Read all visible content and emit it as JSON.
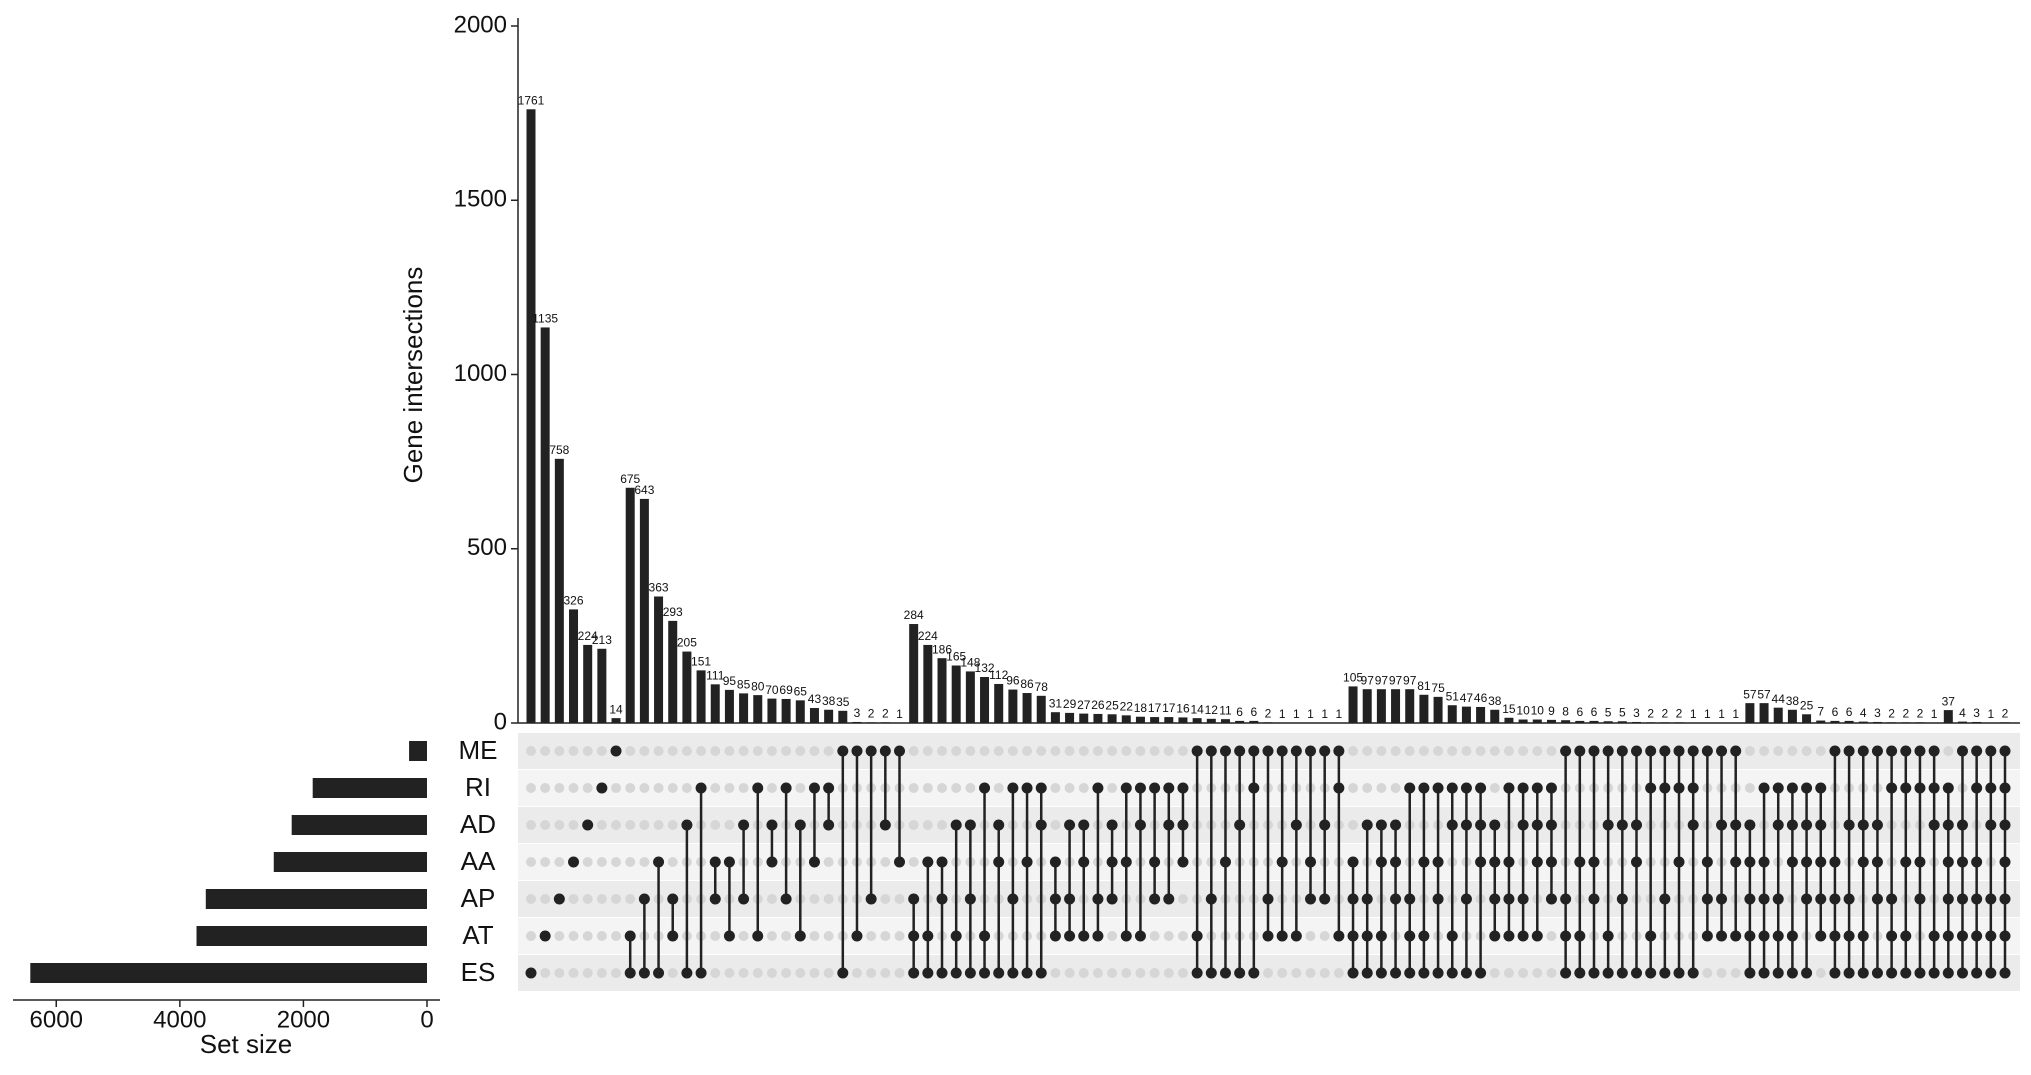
{
  "chart_data": {
    "type": "upset",
    "y_label": "Gene intersections",
    "x_label": "Set size",
    "sets": [
      "ME",
      "RI",
      "AD",
      "AA",
      "AP",
      "AT",
      "ES"
    ],
    "set_sizes": [
      290,
      1850,
      2190,
      2480,
      3580,
      3730,
      6420
    ],
    "set_size_xlim": [
      0,
      6700
    ],
    "set_size_xticks": [
      0,
      2000,
      4000,
      6000
    ],
    "ylim": [
      0,
      2000
    ],
    "yticks": [
      0,
      500,
      1000,
      1500,
      2000
    ],
    "color": "#222222",
    "values": [
      1761,
      1135,
      758,
      326,
      224,
      213,
      14,
      675,
      643,
      363,
      293,
      205,
      151,
      111,
      95,
      85,
      80,
      70,
      69,
      65,
      43,
      38,
      35,
      3,
      2,
      2,
      1,
      284,
      224,
      186,
      165,
      148,
      132,
      112,
      96,
      86,
      78,
      31,
      29,
      27,
      26,
      25,
      22,
      18,
      17,
      17,
      16,
      14,
      12,
      11,
      6,
      6,
      2,
      1,
      1,
      1,
      1,
      1,
      105,
      97,
      97,
      97,
      97,
      81,
      75,
      51,
      47,
      46,
      38,
      15,
      10,
      10,
      9,
      8,
      6,
      6,
      5,
      5,
      3,
      2,
      2,
      2,
      1,
      1,
      1,
      1,
      57,
      57,
      44,
      38,
      25,
      7,
      6,
      6,
      4,
      3,
      2,
      2,
      2,
      1,
      37,
      4,
      3,
      1,
      2
    ],
    "intersections": [
      [
        6
      ],
      [
        5
      ],
      [
        4
      ],
      [
        3
      ],
      [
        2
      ],
      [
        1
      ],
      [
        0
      ],
      [
        5,
        6
      ],
      [
        4,
        6
      ],
      [
        3,
        6
      ],
      [
        4,
        5
      ],
      [
        2,
        6
      ],
      [
        1,
        6
      ],
      [
        3,
        4
      ],
      [
        3,
        5
      ],
      [
        2,
        4
      ],
      [
        1,
        5
      ],
      [
        2,
        3
      ],
      [
        1,
        4
      ],
      [
        2,
        5
      ],
      [
        1,
        3
      ],
      [
        1,
        2
      ],
      [
        0,
        6
      ],
      [
        0,
        5
      ],
      [
        0,
        4
      ],
      [
        0,
        2
      ],
      [
        0,
        3
      ],
      [
        4,
        5,
        6
      ],
      [
        3,
        5,
        6
      ],
      [
        3,
        4,
        6
      ],
      [
        2,
        5,
        6
      ],
      [
        2,
        4,
        6
      ],
      [
        1,
        5,
        6
      ],
      [
        2,
        3,
        6
      ],
      [
        1,
        4,
        6
      ],
      [
        1,
        3,
        6
      ],
      [
        1,
        2,
        6
      ],
      [
        3,
        4,
        5
      ],
      [
        2,
        4,
        5
      ],
      [
        2,
        3,
        5
      ],
      [
        1,
        4,
        5
      ],
      [
        2,
        3,
        4
      ],
      [
        1,
        3,
        5
      ],
      [
        1,
        2,
        5
      ],
      [
        1,
        3,
        4
      ],
      [
        1,
        2,
        4
      ],
      [
        1,
        2,
        3
      ],
      [
        0,
        5,
        6
      ],
      [
        0,
        4,
        6
      ],
      [
        0,
        3,
        6
      ],
      [
        0,
        2,
        6
      ],
      [
        0,
        1,
        6
      ],
      [
        0,
        4,
        5
      ],
      [
        0,
        3,
        5
      ],
      [
        0,
        2,
        5
      ],
      [
        0,
        3,
        4
      ],
      [
        0,
        2,
        4
      ],
      [
        0,
        1,
        5
      ],
      [
        3,
        4,
        5,
        6
      ],
      [
        2,
        4,
        5,
        6
      ],
      [
        2,
        3,
        5,
        6
      ],
      [
        2,
        3,
        4,
        6
      ],
      [
        1,
        4,
        5,
        6
      ],
      [
        1,
        3,
        5,
        6
      ],
      [
        1,
        3,
        4,
        6
      ],
      [
        1,
        2,
        5,
        6
      ],
      [
        1,
        2,
        4,
        6
      ],
      [
        1,
        2,
        3,
        6
      ],
      [
        2,
        3,
        4,
        5
      ],
      [
        1,
        3,
        4,
        5
      ],
      [
        1,
        2,
        4,
        5
      ],
      [
        1,
        2,
        3,
        5
      ],
      [
        1,
        2,
        3,
        4
      ],
      [
        0,
        4,
        5,
        6
      ],
      [
        0,
        3,
        5,
        6
      ],
      [
        0,
        3,
        4,
        6
      ],
      [
        0,
        2,
        5,
        6
      ],
      [
        0,
        2,
        4,
        6
      ],
      [
        0,
        2,
        3,
        6
      ],
      [
        0,
        1,
        5,
        6
      ],
      [
        0,
        1,
        4,
        6
      ],
      [
        0,
        1,
        3,
        6
      ],
      [
        0,
        1,
        2,
        6
      ],
      [
        0,
        3,
        4,
        5
      ],
      [
        0,
        2,
        4,
        5
      ],
      [
        0,
        2,
        3,
        5
      ],
      [
        2,
        3,
        4,
        5,
        6
      ],
      [
        1,
        3,
        4,
        5,
        6
      ],
      [
        1,
        2,
        4,
        5,
        6
      ],
      [
        1,
        2,
        3,
        5,
        6
      ],
      [
        1,
        2,
        3,
        4,
        6
      ],
      [
        1,
        2,
        3,
        4,
        5
      ],
      [
        0,
        3,
        4,
        5,
        6
      ],
      [
        0,
        2,
        4,
        5,
        6
      ],
      [
        0,
        2,
        3,
        5,
        6
      ],
      [
        0,
        2,
        3,
        4,
        6
      ],
      [
        0,
        1,
        4,
        5,
        6
      ],
      [
        0,
        1,
        3,
        5,
        6
      ],
      [
        0,
        1,
        3,
        4,
        6
      ],
      [
        0,
        1,
        2,
        5,
        6
      ],
      [
        1,
        2,
        3,
        4,
        5,
        6
      ],
      [
        0,
        2,
        3,
        4,
        5,
        6
      ],
      [
        0,
        1,
        3,
        4,
        5,
        6
      ],
      [
        0,
        1,
        2,
        4,
        5,
        6
      ],
      [
        0,
        1,
        2,
        3,
        4,
        5,
        6
      ]
    ]
  }
}
